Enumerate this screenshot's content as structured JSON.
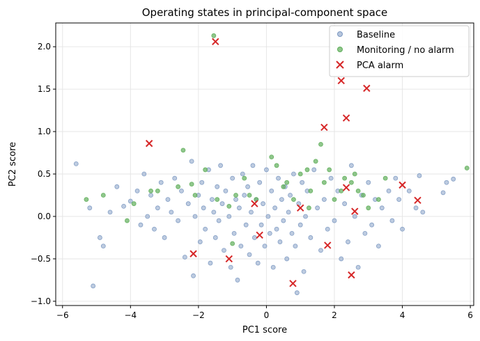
{
  "chart_data": {
    "type": "scatter",
    "title": "Operating states in principal-component space",
    "xlabel": "PC1 score",
    "ylabel": "PC2 score",
    "xlim": [
      -6.2,
      6.1
    ],
    "ylim": [
      -1.05,
      2.28
    ],
    "xticks": [
      -6,
      -4,
      -2,
      0,
      2,
      4,
      6
    ],
    "yticks": [
      -1.0,
      -0.5,
      0.0,
      0.5,
      1.0,
      1.5,
      2.0
    ],
    "xtick_labels": [
      "−6",
      "−4",
      "−2",
      "0",
      "2",
      "4",
      "6"
    ],
    "ytick_labels": [
      "−1.0",
      "−0.5",
      "0.0",
      "0.5",
      "1.0",
      "1.5",
      "2.0"
    ],
    "grid": true,
    "legend_position": "top-right",
    "series": [
      {
        "name": "Baseline",
        "marker": "circle",
        "color": "#7b98c1",
        "points": [
          [
            -5.6,
            0.62
          ],
          [
            -5.2,
            0.1
          ],
          [
            -5.1,
            -0.82
          ],
          [
            -4.9,
            -0.25
          ],
          [
            -4.8,
            -0.35
          ],
          [
            -4.6,
            0.05
          ],
          [
            -4.4,
            0.35
          ],
          [
            -4.2,
            0.12
          ],
          [
            -4.0,
            0.18
          ],
          [
            -3.8,
            0.3
          ],
          [
            -3.7,
            -0.1
          ],
          [
            -3.6,
            0.5
          ],
          [
            -3.5,
            0.0
          ],
          [
            -3.4,
            0.25
          ],
          [
            -3.3,
            -0.15
          ],
          [
            -3.2,
            0.1
          ],
          [
            -3.1,
            0.4
          ],
          [
            -3.0,
            -0.25
          ],
          [
            -2.9,
            0.2
          ],
          [
            -2.8,
            0.05
          ],
          [
            -2.7,
            0.45
          ],
          [
            -2.6,
            -0.05
          ],
          [
            -2.5,
            0.3
          ],
          [
            -2.4,
            -0.48
          ],
          [
            -2.3,
            0.15
          ],
          [
            -2.2,
            0.65
          ],
          [
            -2.15,
            -0.7
          ],
          [
            -2.1,
            0.0
          ],
          [
            -2.0,
            0.25
          ],
          [
            -1.95,
            -0.3
          ],
          [
            -1.9,
            0.4
          ],
          [
            -1.85,
            0.1
          ],
          [
            -1.8,
            -0.15
          ],
          [
            -1.7,
            0.55
          ],
          [
            -1.65,
            -0.55
          ],
          [
            -1.6,
            0.2
          ],
          [
            -1.55,
            0.05
          ],
          [
            -1.5,
            -0.25
          ],
          [
            -1.45,
            0.35
          ],
          [
            -1.4,
            -0.05
          ],
          [
            -1.35,
            0.6
          ],
          [
            -1.3,
            0.15
          ],
          [
            -1.25,
            -0.4
          ],
          [
            -1.2,
            0.3
          ],
          [
            -1.1,
            0.0
          ],
          [
            -1.05,
            -0.6
          ],
          [
            -1.0,
            0.45
          ],
          [
            -0.95,
            -0.2
          ],
          [
            -0.9,
            0.2
          ],
          [
            -0.85,
            -0.75
          ],
          [
            -0.8,
            0.1
          ],
          [
            -0.75,
            -0.35
          ],
          [
            -0.7,
            0.5
          ],
          [
            -0.65,
            0.25
          ],
          [
            -0.6,
            -0.1
          ],
          [
            -0.55,
            0.35
          ],
          [
            -0.5,
            -0.45
          ],
          [
            -0.45,
            0.05
          ],
          [
            -0.4,
            0.6
          ],
          [
            -0.35,
            -0.25
          ],
          [
            -0.3,
            0.2
          ],
          [
            -0.25,
            -0.55
          ],
          [
            -0.2,
            0.4
          ],
          [
            -0.15,
            -0.1
          ],
          [
            -0.1,
            0.15
          ],
          [
            -0.05,
            -0.35
          ],
          [
            0.0,
            0.55
          ],
          [
            0.05,
            0.0
          ],
          [
            0.1,
            -0.2
          ],
          [
            0.15,
            0.3
          ],
          [
            0.2,
            -0.6
          ],
          [
            0.25,
            0.1
          ],
          [
            0.3,
            -0.15
          ],
          [
            0.35,
            0.45
          ],
          [
            0.4,
            -0.3
          ],
          [
            0.45,
            0.2
          ],
          [
            0.5,
            -0.05
          ],
          [
            0.55,
            0.35
          ],
          [
            0.6,
            -0.5
          ],
          [
            0.65,
            0.05
          ],
          [
            0.7,
            0.25
          ],
          [
            0.75,
            -0.2
          ],
          [
            0.8,
            0.5
          ],
          [
            0.85,
            -0.35
          ],
          [
            0.9,
            -0.9
          ],
          [
            0.95,
            0.15
          ],
          [
            1.0,
            -0.1
          ],
          [
            1.05,
            0.4
          ],
          [
            1.1,
            -0.65
          ],
          [
            1.15,
            0.0
          ],
          [
            1.2,
            0.3
          ],
          [
            1.3,
            -0.25
          ],
          [
            1.4,
            0.55
          ],
          [
            1.5,
            0.1
          ],
          [
            1.6,
            -0.4
          ],
          [
            1.7,
            0.2
          ],
          [
            1.8,
            -0.15
          ],
          [
            1.9,
            0.45
          ],
          [
            2.0,
            -0.05
          ],
          [
            2.1,
            0.3
          ],
          [
            2.2,
            -0.5
          ],
          [
            2.3,
            0.15
          ],
          [
            2.4,
            -0.3
          ],
          [
            2.5,
            0.6
          ],
          [
            2.6,
            0.0
          ],
          [
            2.7,
            -0.6
          ],
          [
            2.8,
            0.25
          ],
          [
            2.9,
            -0.2
          ],
          [
            3.0,
            0.4
          ],
          [
            3.1,
            -0.1
          ],
          [
            3.2,
            0.2
          ],
          [
            3.3,
            -0.35
          ],
          [
            3.4,
            0.1
          ],
          [
            3.6,
            0.3
          ],
          [
            3.7,
            -0.05
          ],
          [
            3.8,
            0.45
          ],
          [
            3.9,
            0.2
          ],
          [
            4.0,
            -0.15
          ],
          [
            4.2,
            0.3
          ],
          [
            4.4,
            0.1
          ],
          [
            4.5,
            0.48
          ],
          [
            4.6,
            0.05
          ],
          [
            5.2,
            0.28
          ],
          [
            5.3,
            0.4
          ],
          [
            5.5,
            0.44
          ]
        ]
      },
      {
        "name": "Monitoring / no alarm",
        "marker": "circle",
        "color": "#5fae5a",
        "points": [
          [
            -5.3,
            0.2
          ],
          [
            -4.8,
            0.25
          ],
          [
            -4.1,
            -0.05
          ],
          [
            -3.9,
            0.15
          ],
          [
            -3.4,
            0.3
          ],
          [
            -3.2,
            0.3
          ],
          [
            -2.6,
            0.35
          ],
          [
            -2.45,
            0.78
          ],
          [
            -2.2,
            0.38
          ],
          [
            -2.1,
            0.25
          ],
          [
            -1.8,
            0.55
          ],
          [
            -1.55,
            2.13
          ],
          [
            -1.45,
            0.2
          ],
          [
            -1.1,
            0.12
          ],
          [
            -1.0,
            -0.32
          ],
          [
            -0.9,
            0.25
          ],
          [
            -0.65,
            0.45
          ],
          [
            -0.5,
            0.25
          ],
          [
            -0.3,
            0.2
          ],
          [
            0.15,
            0.7
          ],
          [
            0.3,
            0.6
          ],
          [
            0.5,
            0.35
          ],
          [
            0.6,
            0.4
          ],
          [
            0.8,
            0.2
          ],
          [
            1.0,
            0.5
          ],
          [
            1.2,
            0.55
          ],
          [
            1.25,
            0.1
          ],
          [
            1.3,
            0.3
          ],
          [
            1.45,
            0.65
          ],
          [
            1.6,
            0.85
          ],
          [
            1.7,
            0.4
          ],
          [
            1.85,
            0.55
          ],
          [
            2.0,
            0.2
          ],
          [
            2.2,
            0.3
          ],
          [
            2.3,
            0.45
          ],
          [
            2.5,
            0.4
          ],
          [
            2.6,
            0.5
          ],
          [
            2.7,
            0.3
          ],
          [
            2.85,
            0.25
          ],
          [
            3.0,
            0.1
          ],
          [
            3.3,
            0.2
          ],
          [
            3.5,
            0.45
          ],
          [
            5.9,
            0.57
          ]
        ]
      },
      {
        "name": "PCA alarm",
        "marker": "x",
        "color": "#d62728",
        "points": [
          [
            -3.45,
            0.86
          ],
          [
            -2.15,
            -0.44
          ],
          [
            -1.5,
            2.06
          ],
          [
            -1.1,
            -0.5
          ],
          [
            -0.35,
            0.15
          ],
          [
            -0.2,
            -0.22
          ],
          [
            0.78,
            -0.79
          ],
          [
            1.0,
            0.1
          ],
          [
            1.7,
            1.05
          ],
          [
            1.8,
            -0.34
          ],
          [
            2.2,
            1.6
          ],
          [
            2.35,
            1.16
          ],
          [
            2.35,
            0.34
          ],
          [
            2.5,
            -0.69
          ],
          [
            2.6,
            0.06
          ],
          [
            2.95,
            1.51
          ],
          [
            4.0,
            0.37
          ],
          [
            4.45,
            0.19
          ]
        ]
      }
    ]
  }
}
